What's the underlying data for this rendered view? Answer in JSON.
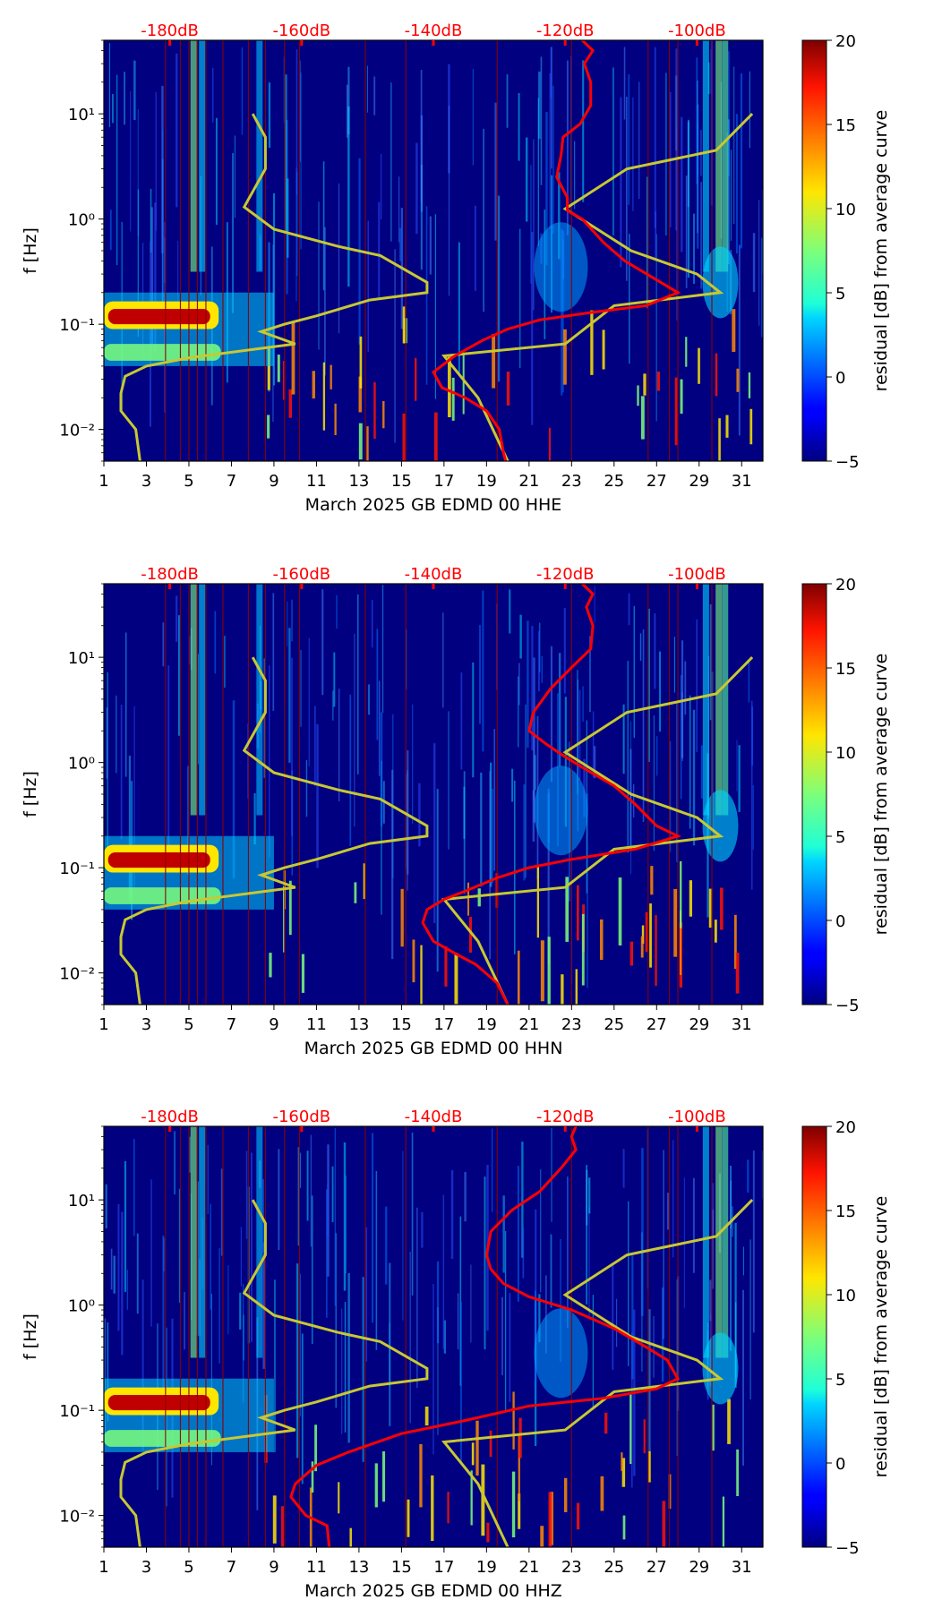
{
  "panels": [
    {
      "xlabel": "March 2025 GB EDMD 00 HHE",
      "ylabel": "f [Hz]",
      "colorbar_label": "residual [dB] from average curve"
    },
    {
      "xlabel": "March 2025 GB EDMD 00 HHN",
      "ylabel": "f [Hz]",
      "colorbar_label": "residual [dB] from average curve"
    },
    {
      "xlabel": "March 2025 GB EDMD 00 HHZ",
      "ylabel": "f [Hz]",
      "colorbar_label": "residual [dB] from average curve"
    }
  ],
  "x_ticks": [
    "1",
    "3",
    "5",
    "7",
    "9",
    "11",
    "13",
    "15",
    "17",
    "19",
    "21",
    "23",
    "25",
    "27",
    "29",
    "31"
  ],
  "y_ticks": [
    "10⁻²",
    "10⁻¹",
    "10⁰",
    "10¹"
  ],
  "top_ticks": [
    "-180dB",
    "-160dB",
    "-140dB",
    "-120dB",
    "-100dB"
  ],
  "colorbar_ticks": [
    "−5",
    "0",
    "5",
    "10",
    "15",
    "20"
  ],
  "colors": {
    "background": "#000080",
    "psd_curve": "#ff0000",
    "reference_curve": "#c8c832",
    "top_tick_text": "#ff0000"
  },
  "chart_data": [
    {
      "type": "heatmap",
      "title": "",
      "xlabel": "March 2025 GB EDMD 00 HHE",
      "ylabel": "f [Hz]",
      "x_range": [
        1,
        32
      ],
      "y_range": [
        0.005,
        50
      ],
      "y_scale": "log",
      "x_ticks": [
        1,
        3,
        5,
        7,
        9,
        11,
        13,
        15,
        17,
        19,
        21,
        23,
        25,
        27,
        29,
        31
      ],
      "top_axis": {
        "label_values_dB": [
          -180,
          -160,
          -140,
          -120,
          -100
        ],
        "range_dB": [
          -190,
          -90
        ]
      },
      "colorbar": {
        "label": "residual [dB] from average curve",
        "range": [
          -5,
          20
        ],
        "ticks": [
          -5,
          0,
          5,
          10,
          15,
          20
        ],
        "colormap": "jet"
      },
      "psd_curve": [
        [
          23.5,
          50
        ],
        [
          24.0,
          40
        ],
        [
          23.6,
          30
        ],
        [
          23.9,
          20
        ],
        [
          23.9,
          12
        ],
        [
          23.4,
          8
        ],
        [
          22.6,
          6
        ],
        [
          22.5,
          4
        ],
        [
          22.3,
          2.5
        ],
        [
          22.8,
          1.6
        ],
        [
          22.8,
          1.2
        ],
        [
          23.5,
          1.0
        ],
        [
          24.5,
          0.6
        ],
        [
          25.5,
          0.4
        ],
        [
          27.2,
          0.25
        ],
        [
          28.0,
          0.2
        ],
        [
          26.5,
          0.15
        ],
        [
          24.0,
          0.13
        ],
        [
          21.5,
          0.11
        ],
        [
          20.0,
          0.09
        ],
        [
          18.8,
          0.07
        ],
        [
          17.5,
          0.05
        ],
        [
          16.5,
          0.035
        ],
        [
          16.9,
          0.025
        ],
        [
          18.0,
          0.02
        ],
        [
          19.0,
          0.015
        ],
        [
          19.6,
          0.01
        ],
        [
          19.8,
          0.006
        ],
        [
          19.9,
          0.005
        ]
      ],
      "reference_curve": [
        [
          31.5,
          10
        ],
        [
          29.8,
          4.5
        ],
        [
          25.6,
          3
        ],
        [
          22.7,
          1.25
        ],
        [
          25.8,
          0.5
        ],
        [
          28.9,
          0.3
        ],
        [
          30.0,
          0.2
        ],
        [
          25.0,
          0.15
        ],
        [
          22.7,
          0.065
        ],
        [
          17.0,
          0.05
        ],
        [
          18.6,
          0.02
        ],
        [
          20.0,
          0.005
        ]
      ],
      "reference_curve_left": [
        [
          8.0,
          10
        ],
        [
          8.6,
          6
        ],
        [
          8.6,
          3
        ],
        [
          7.6,
          1.3
        ],
        [
          9.0,
          0.8
        ],
        [
          12.0,
          0.55
        ],
        [
          14.0,
          0.45
        ],
        [
          16.2,
          0.25
        ],
        [
          16.2,
          0.2
        ],
        [
          13.5,
          0.17
        ],
        [
          11.0,
          0.12
        ],
        [
          9.5,
          0.1
        ],
        [
          8.4,
          0.085
        ],
        [
          10.0,
          0.065
        ],
        [
          5.0,
          0.048
        ],
        [
          3.0,
          0.04
        ],
        [
          2.0,
          0.032
        ],
        [
          1.8,
          0.022
        ],
        [
          1.8,
          0.015
        ],
        [
          2.5,
          0.01
        ],
        [
          2.7,
          0.005
        ]
      ]
    },
    {
      "type": "heatmap",
      "title": "",
      "xlabel": "March 2025 GB EDMD 00 HHN",
      "ylabel": "f [Hz]",
      "x_range": [
        1,
        32
      ],
      "y_range": [
        0.005,
        50
      ],
      "y_scale": "log",
      "x_ticks": [
        1,
        3,
        5,
        7,
        9,
        11,
        13,
        15,
        17,
        19,
        21,
        23,
        25,
        27,
        29,
        31
      ],
      "top_axis": {
        "label_values_dB": [
          -180,
          -160,
          -140,
          -120,
          -100
        ],
        "range_dB": [
          -190,
          -90
        ]
      },
      "colorbar": {
        "label": "residual [dB] from average curve",
        "range": [
          -5,
          20
        ],
        "ticks": [
          -5,
          0,
          5,
          10,
          15,
          20
        ],
        "colormap": "jet"
      },
      "psd_curve": [
        [
          23.5,
          50
        ],
        [
          24.0,
          40
        ],
        [
          23.7,
          30
        ],
        [
          24.0,
          20
        ],
        [
          23.9,
          12
        ],
        [
          23.0,
          8
        ],
        [
          22.0,
          5
        ],
        [
          21.2,
          3
        ],
        [
          21.0,
          2
        ],
        [
          21.8,
          1.5
        ],
        [
          22.5,
          1.2
        ],
        [
          23.5,
          0.9
        ],
        [
          25.0,
          0.6
        ],
        [
          26.0,
          0.4
        ],
        [
          27.0,
          0.25
        ],
        [
          28.0,
          0.2
        ],
        [
          26.0,
          0.15
        ],
        [
          23.0,
          0.12
        ],
        [
          21.0,
          0.1
        ],
        [
          19.5,
          0.08
        ],
        [
          18.0,
          0.06
        ],
        [
          17.0,
          0.05
        ],
        [
          16.2,
          0.04
        ],
        [
          16.0,
          0.03
        ],
        [
          16.5,
          0.02
        ],
        [
          17.6,
          0.015
        ],
        [
          18.5,
          0.012
        ],
        [
          19.5,
          0.008
        ],
        [
          20.0,
          0.005
        ]
      ],
      "reference_curve": [
        [
          31.5,
          10
        ],
        [
          29.8,
          4.5
        ],
        [
          25.6,
          3
        ],
        [
          22.7,
          1.25
        ],
        [
          25.8,
          0.5
        ],
        [
          28.9,
          0.3
        ],
        [
          30.0,
          0.2
        ],
        [
          25.0,
          0.15
        ],
        [
          22.7,
          0.065
        ],
        [
          17.0,
          0.05
        ],
        [
          18.6,
          0.02
        ],
        [
          20.0,
          0.005
        ]
      ],
      "reference_curve_left": [
        [
          8.0,
          10
        ],
        [
          8.6,
          6
        ],
        [
          8.6,
          3
        ],
        [
          7.6,
          1.3
        ],
        [
          9.0,
          0.8
        ],
        [
          12.0,
          0.55
        ],
        [
          14.0,
          0.45
        ],
        [
          16.2,
          0.25
        ],
        [
          16.2,
          0.2
        ],
        [
          13.5,
          0.17
        ],
        [
          11.0,
          0.12
        ],
        [
          9.5,
          0.1
        ],
        [
          8.4,
          0.085
        ],
        [
          10.0,
          0.065
        ],
        [
          5.0,
          0.048
        ],
        [
          3.0,
          0.04
        ],
        [
          2.0,
          0.032
        ],
        [
          1.8,
          0.022
        ],
        [
          1.8,
          0.015
        ],
        [
          2.5,
          0.01
        ],
        [
          2.7,
          0.005
        ]
      ]
    },
    {
      "type": "heatmap",
      "title": "",
      "xlabel": "March 2025 GB EDMD 00 HHZ",
      "ylabel": "f [Hz]",
      "x_range": [
        1,
        32
      ],
      "y_range": [
        0.005,
        50
      ],
      "y_scale": "log",
      "x_ticks": [
        1,
        3,
        5,
        7,
        9,
        11,
        13,
        15,
        17,
        19,
        21,
        23,
        25,
        27,
        29,
        31
      ],
      "top_axis": {
        "label_values_dB": [
          -180,
          -160,
          -140,
          -120,
          -100
        ],
        "range_dB": [
          -190,
          -90
        ]
      },
      "colorbar": {
        "label": "residual [dB] from average curve",
        "range": [
          -5,
          20
        ],
        "ticks": [
          -5,
          0,
          5,
          10,
          15,
          20
        ],
        "colormap": "jet"
      },
      "psd_curve": [
        [
          23.2,
          50
        ],
        [
          23.0,
          40
        ],
        [
          23.2,
          30
        ],
        [
          22.5,
          20
        ],
        [
          21.5,
          12
        ],
        [
          20.2,
          8
        ],
        [
          19.2,
          5
        ],
        [
          19.0,
          3
        ],
        [
          19.2,
          2.2
        ],
        [
          19.8,
          1.6
        ],
        [
          21.0,
          1.2
        ],
        [
          23.0,
          0.9
        ],
        [
          25.0,
          0.6
        ],
        [
          26.5,
          0.4
        ],
        [
          27.5,
          0.3
        ],
        [
          28.0,
          0.2
        ],
        [
          27.0,
          0.16
        ],
        [
          24.5,
          0.13
        ],
        [
          21.0,
          0.11
        ],
        [
          18.0,
          0.08
        ],
        [
          15.0,
          0.06
        ],
        [
          12.5,
          0.04
        ],
        [
          11.0,
          0.03
        ],
        [
          10.0,
          0.02
        ],
        [
          9.8,
          0.015
        ],
        [
          10.5,
          0.01
        ],
        [
          11.5,
          0.008
        ],
        [
          11.6,
          0.005
        ]
      ],
      "reference_curve": [
        [
          31.5,
          10
        ],
        [
          29.8,
          4.5
        ],
        [
          25.6,
          3
        ],
        [
          22.7,
          1.25
        ],
        [
          25.8,
          0.5
        ],
        [
          28.9,
          0.3
        ],
        [
          30.0,
          0.2
        ],
        [
          25.0,
          0.15
        ],
        [
          22.7,
          0.065
        ],
        [
          17.0,
          0.05
        ],
        [
          18.6,
          0.02
        ],
        [
          20.0,
          0.005
        ]
      ],
      "reference_curve_left": [
        [
          8.0,
          10
        ],
        [
          8.6,
          6
        ],
        [
          8.6,
          3
        ],
        [
          7.6,
          1.3
        ],
        [
          9.0,
          0.8
        ],
        [
          12.0,
          0.55
        ],
        [
          14.0,
          0.45
        ],
        [
          16.2,
          0.25
        ],
        [
          16.2,
          0.2
        ],
        [
          13.5,
          0.17
        ],
        [
          11.0,
          0.12
        ],
        [
          9.5,
          0.1
        ],
        [
          8.4,
          0.085
        ],
        [
          10.0,
          0.065
        ],
        [
          5.0,
          0.048
        ],
        [
          3.0,
          0.04
        ],
        [
          2.0,
          0.032
        ],
        [
          1.8,
          0.022
        ],
        [
          1.8,
          0.015
        ],
        [
          2.5,
          0.01
        ],
        [
          2.7,
          0.005
        ]
      ]
    }
  ]
}
